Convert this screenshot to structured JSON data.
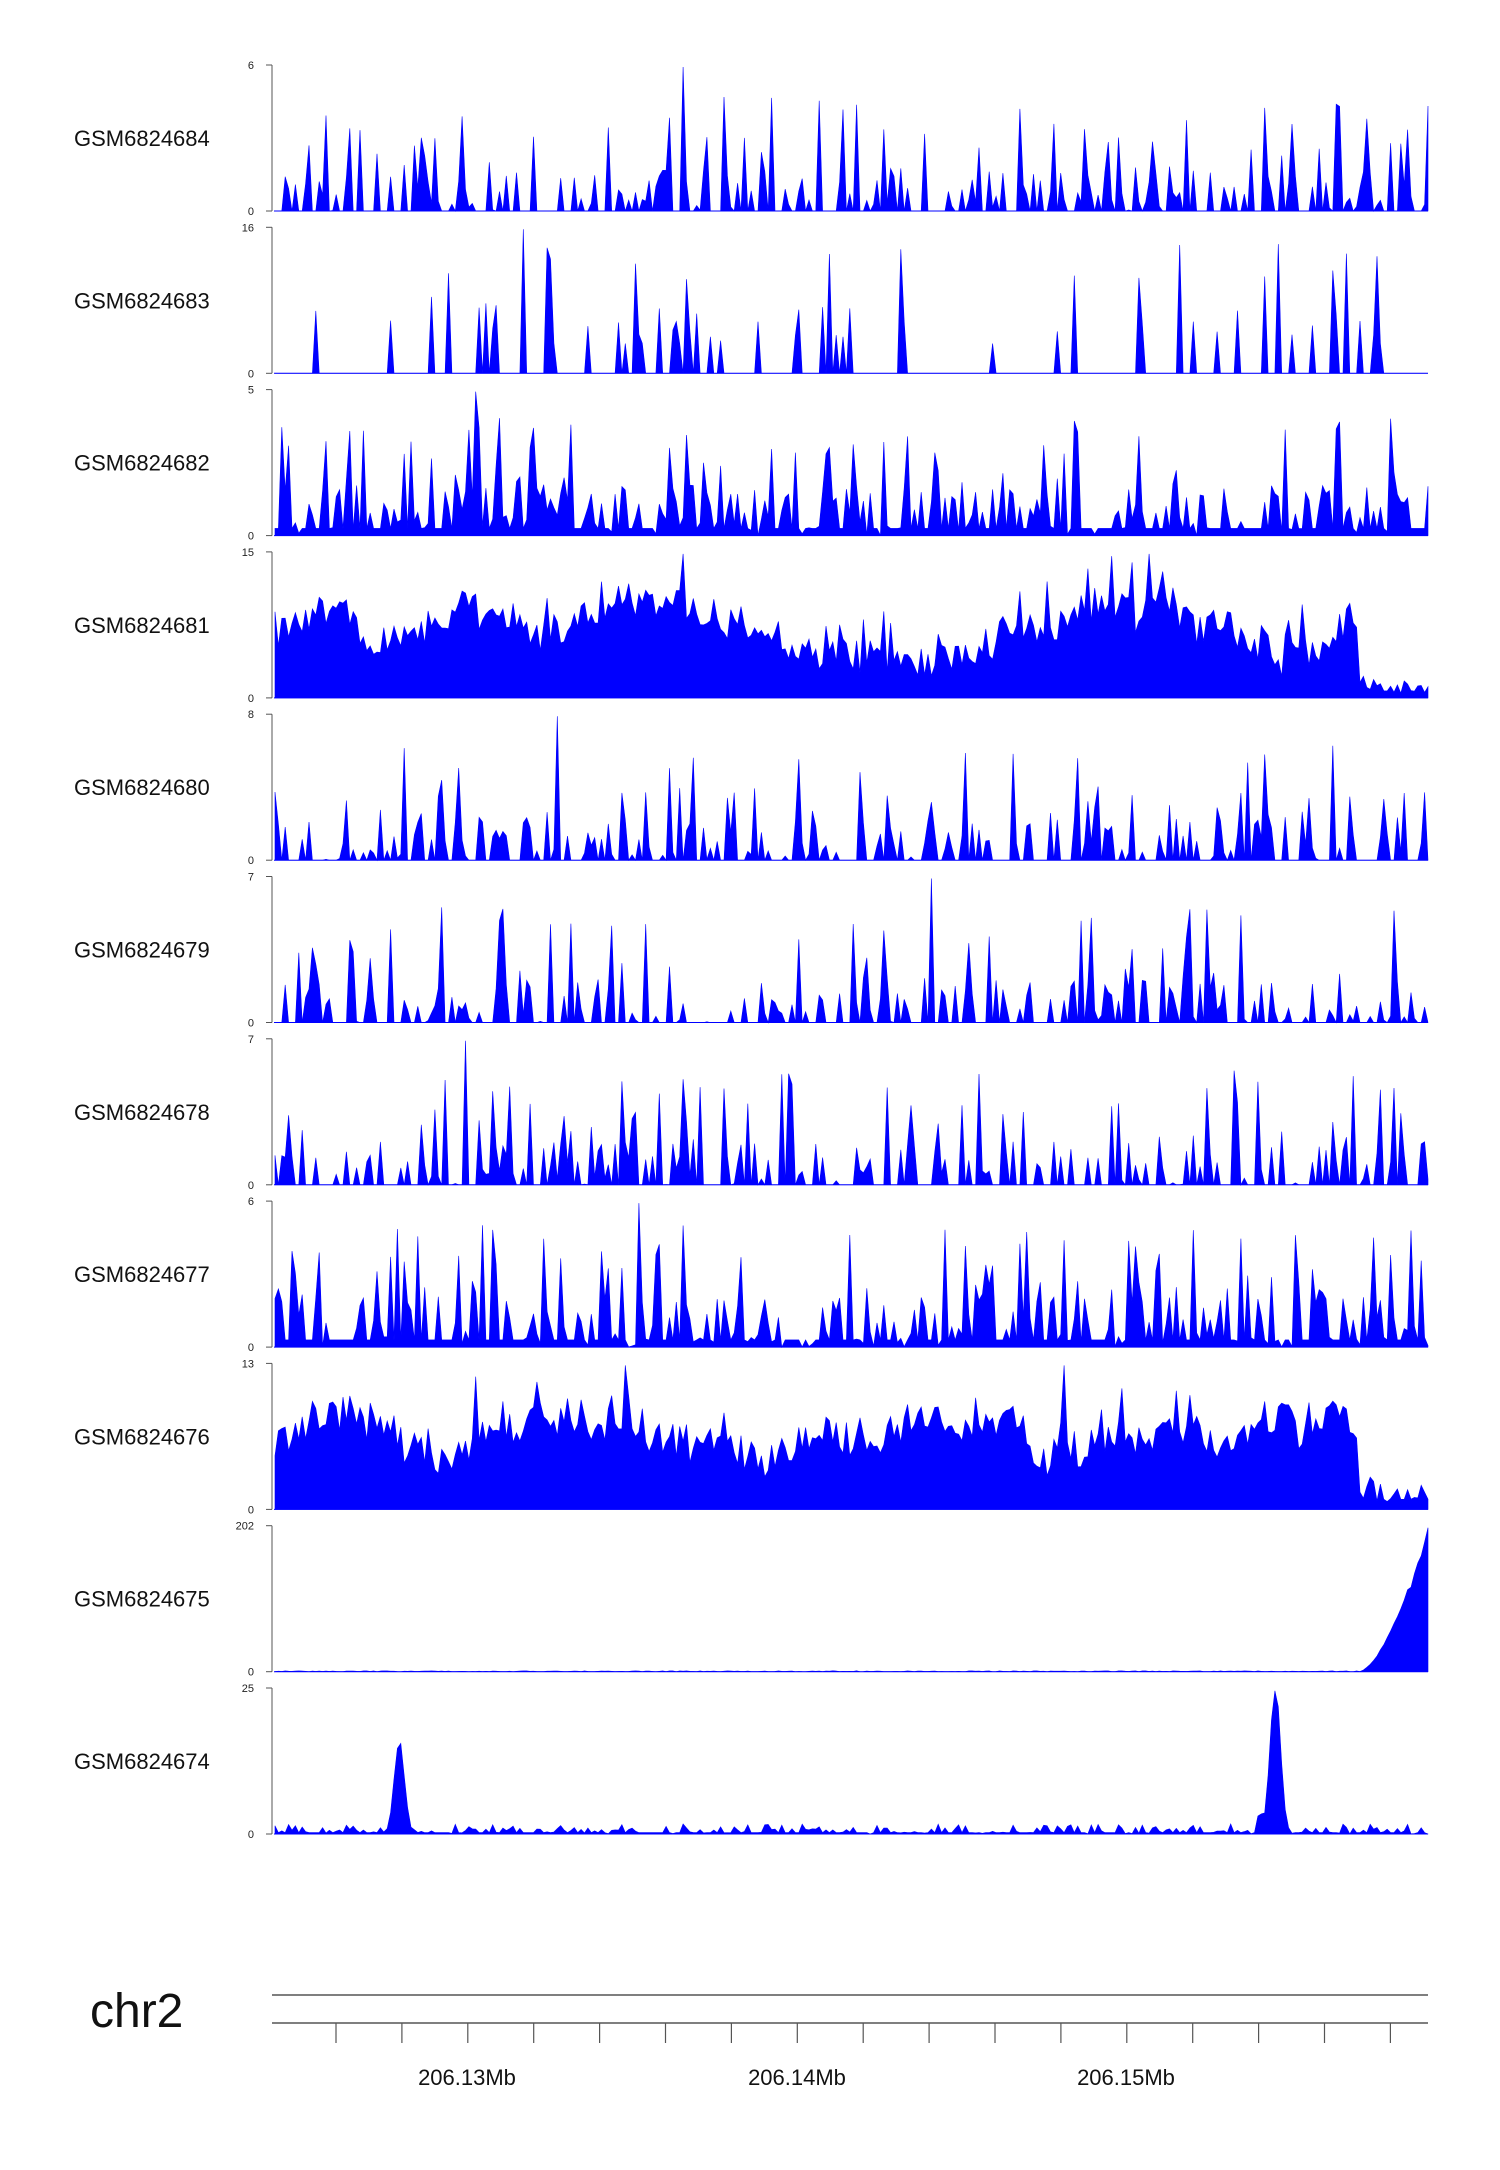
{
  "chart_data": {
    "type": "area",
    "chromosome": "chr2",
    "x_axis_labels": [
      "206.13Mb",
      "206.14Mb",
      "206.15Mb"
    ],
    "colors": {
      "fill": "#0000ff",
      "axis": "#555555"
    },
    "tracks": [
      {
        "name": "GSM6824684",
        "ymax": 6,
        "ymin": 0,
        "profile": "sparse-spiky",
        "peak_x": 0.355
      },
      {
        "name": "GSM6824683",
        "ymax": 16,
        "ymin": 0,
        "profile": "very-sparse-spiky",
        "peak_x": 0.215
      },
      {
        "name": "GSM6824682",
        "ymax": 5,
        "ymin": 0,
        "profile": "dense-spiky",
        "peak_x": 0.175
      },
      {
        "name": "GSM6824681",
        "ymax": 15,
        "ymin": 0,
        "profile": "dense-continuous",
        "peak_x": 0.355
      },
      {
        "name": "GSM6824680",
        "ymax": 8,
        "ymin": 0,
        "profile": "sparse-spiky",
        "peak_x": 0.245
      },
      {
        "name": "GSM6824679",
        "ymax": 7,
        "ymin": 0,
        "profile": "sparse-spiky",
        "peak_x": 0.57
      },
      {
        "name": "GSM6824678",
        "ymax": 7,
        "ymin": 0,
        "profile": "sparse-spiky",
        "peak_x": 0.165
      },
      {
        "name": "GSM6824677",
        "ymax": 6,
        "ymin": 0,
        "profile": "dense-spiky",
        "peak_x": 0.315
      },
      {
        "name": "GSM6824676",
        "ymax": 13,
        "ymin": 0,
        "profile": "dense-continuous",
        "peak_x": 0.685
      },
      {
        "name": "GSM6824675",
        "ymax": 202,
        "ymin": 0,
        "profile": "end-ramp",
        "peak_x": 1.0
      },
      {
        "name": "GSM6824674",
        "ymax": 25,
        "ymin": 0,
        "profile": "two-peaks",
        "peaks": [
          0.108,
          0.868
        ],
        "peak_values": [
          16,
          25
        ]
      }
    ]
  }
}
